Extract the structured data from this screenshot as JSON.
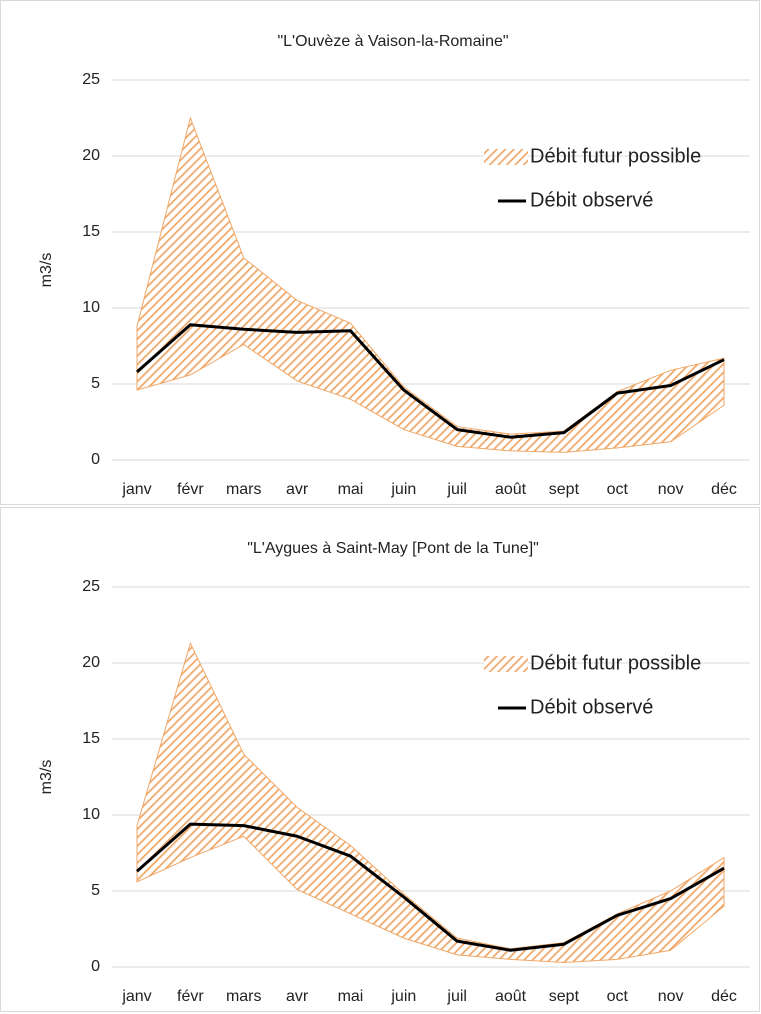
{
  "chart_data": [
    {
      "type": "line",
      "title": "\"L'Ouvèze à Vaison-la-Romaine\"",
      "y_label": "m3/s",
      "categories": [
        "janv",
        "févr",
        "mars",
        "avr",
        "mai",
        "juin",
        "juil",
        "août",
        "sept",
        "oct",
        "nov",
        "déc"
      ],
      "ylim": [
        0,
        25
      ],
      "yticks": [
        0,
        5,
        10,
        15,
        20,
        25
      ],
      "grid": true,
      "legend": "right",
      "series": [
        {
          "name": "Débit futur possible",
          "color": "#f0a868",
          "low": [
            4.6,
            5.6,
            7.6,
            5.2,
            4.0,
            2.0,
            0.9,
            0.6,
            0.5,
            0.8,
            1.2,
            3.6
          ],
          "high": [
            8.8,
            22.5,
            13.3,
            10.5,
            9.0,
            4.8,
            2.2,
            1.7,
            1.9,
            4.5,
            5.9,
            6.7
          ]
        },
        {
          "name": "Débit observé",
          "color": "#000000",
          "values": [
            5.8,
            8.9,
            8.6,
            8.4,
            8.5,
            4.6,
            2.0,
            1.5,
            1.8,
            4.4,
            4.9,
            6.6
          ]
        }
      ]
    },
    {
      "type": "line",
      "title": "\"L'Aygues à Saint-May [Pont de la Tune]\"",
      "y_label": "m3/s",
      "categories": [
        "janv",
        "févr",
        "mars",
        "avr",
        "mai",
        "juin",
        "juil",
        "août",
        "sept",
        "oct",
        "nov",
        "déc"
      ],
      "ylim": [
        0,
        25
      ],
      "yticks": [
        0,
        5,
        10,
        15,
        20,
        25
      ],
      "grid": true,
      "legend": "right",
      "series": [
        {
          "name": "Débit futur possible",
          "color": "#f0a868",
          "low": [
            5.6,
            7.2,
            8.6,
            5.1,
            3.5,
            1.9,
            0.8,
            0.5,
            0.3,
            0.5,
            1.1,
            4.0
          ],
          "high": [
            9.3,
            21.3,
            14.0,
            10.5,
            8.0,
            4.8,
            1.9,
            1.2,
            1.6,
            3.5,
            5.0,
            7.2
          ]
        },
        {
          "name": "Débit observé",
          "color": "#000000",
          "values": [
            6.3,
            9.4,
            9.3,
            8.6,
            7.3,
            4.6,
            1.7,
            1.1,
            1.5,
            3.4,
            4.5,
            6.5
          ]
        }
      ]
    }
  ]
}
